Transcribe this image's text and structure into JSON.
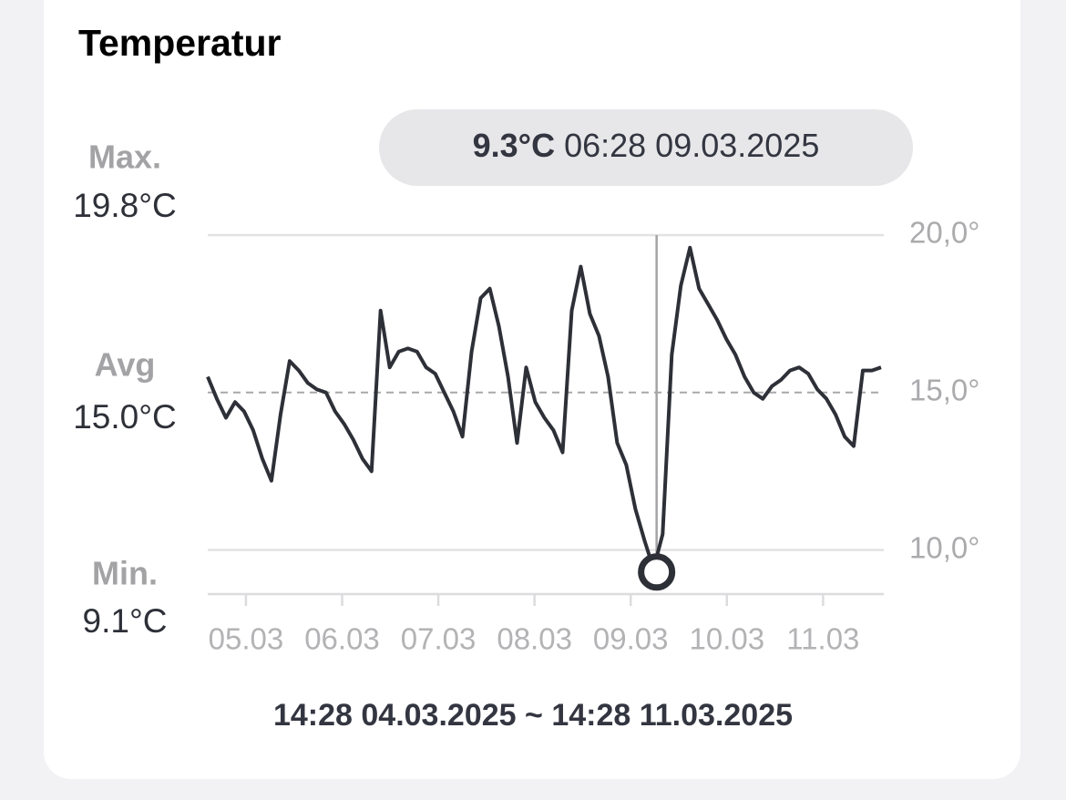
{
  "chart_data": {
    "type": "line",
    "title": "Temperatur",
    "stats": [
      {
        "label": "Max.",
        "value": "19.8°C"
      },
      {
        "label": "Avg",
        "value": "15.0°C"
      },
      {
        "label": "Min.",
        "value": "9.1°C"
      }
    ],
    "tooltip": {
      "value": "9.3°C",
      "time": "06:28 09.03.2025"
    },
    "range": {
      "start": "14:28 04.03.2025",
      "separator": "~",
      "end": "14:28 11.03.2025"
    },
    "color": "#2e3038",
    "values": [
      15.5,
      14.8,
      14.2,
      14.7,
      14.4,
      13.8,
      12.9,
      12.2,
      14.3,
      16.0,
      15.7,
      15.3,
      15.1,
      15.0,
      14.4,
      14.0,
      13.5,
      12.9,
      12.5,
      17.6,
      15.8,
      16.3,
      16.4,
      16.3,
      15.8,
      15.6,
      15.0,
      14.4,
      13.6,
      16.3,
      18.0,
      18.3,
      17.1,
      15.5,
      13.4,
      15.8,
      14.7,
      14.2,
      13.8,
      13.1,
      17.6,
      19.0,
      17.5,
      16.8,
      15.5,
      13.4,
      12.7,
      11.3,
      10.3,
      9.4,
      10.5,
      16.2,
      18.4,
      19.6,
      18.3,
      17.8,
      17.3,
      16.7,
      16.2,
      15.5,
      15.0,
      14.8,
      15.2,
      15.4,
      15.7,
      15.8,
      15.6,
      15.1,
      14.8,
      14.3,
      13.6,
      13.3,
      15.7,
      15.7,
      15.8
    ],
    "xticks": [
      "05.03",
      "06.03",
      "07.03",
      "08.03",
      "09.03",
      "10.03",
      "11.03"
    ],
    "ylim": [
      8.6,
      20
    ],
    "yticks": [
      {
        "value": 10,
        "label": "10,0°"
      },
      {
        "value": 15,
        "label": "15,0°"
      },
      {
        "value": 20,
        "label": "20,0°"
      }
    ],
    "grid": true
  }
}
